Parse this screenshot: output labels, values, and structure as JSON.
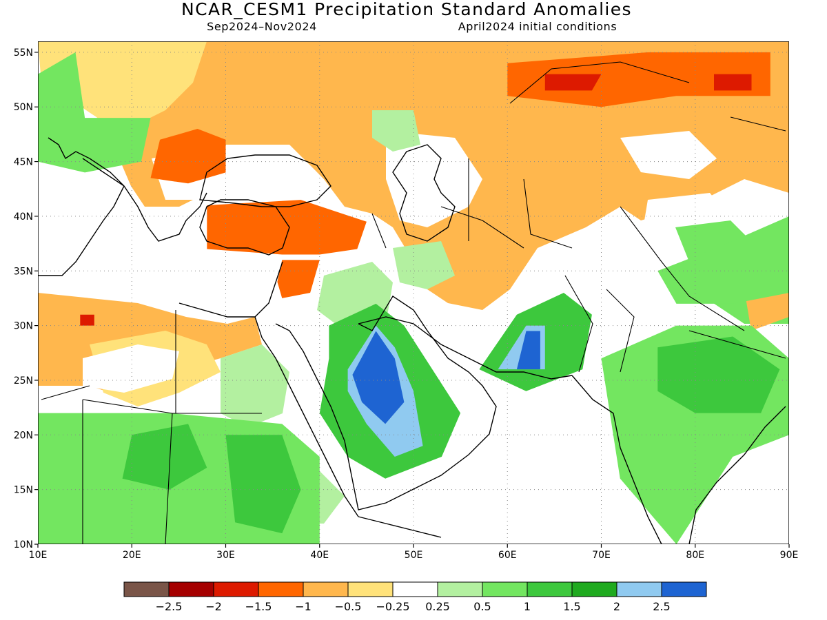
{
  "title": "NCAR_CESM1 Precipitation Standard Anomalies",
  "subtitle_period": "Sep2024–Nov2024",
  "subtitle_init": "April2024 initial conditions",
  "extent": {
    "lon": [
      10,
      90
    ],
    "lat": [
      10,
      56
    ]
  },
  "lat_ticks": [
    {
      "value": 55,
      "label": "55N"
    },
    {
      "value": 50,
      "label": "50N"
    },
    {
      "value": 45,
      "label": "45N"
    },
    {
      "value": 40,
      "label": "40N"
    },
    {
      "value": 35,
      "label": "35N"
    },
    {
      "value": 30,
      "label": "30N"
    },
    {
      "value": 25,
      "label": "25N"
    },
    {
      "value": 20,
      "label": "20N"
    },
    {
      "value": 15,
      "label": "15N"
    },
    {
      "value": 10,
      "label": "10N"
    }
  ],
  "lon_ticks": [
    {
      "value": 10,
      "label": "10E"
    },
    {
      "value": 20,
      "label": "20E"
    },
    {
      "value": 30,
      "label": "30E"
    },
    {
      "value": 40,
      "label": "40E"
    },
    {
      "value": 50,
      "label": "50E"
    },
    {
      "value": 60,
      "label": "60E"
    },
    {
      "value": 70,
      "label": "70E"
    },
    {
      "value": 80,
      "label": "80E"
    },
    {
      "value": 90,
      "label": "90E"
    }
  ],
  "colorbar": {
    "colors": [
      "#7a5548",
      "#a50000",
      "#dd1a00",
      "#ff6600",
      "#ffb74d",
      "#ffe27a",
      "#ffffff",
      "#b3f0a0",
      "#73e660",
      "#3dc83d",
      "#1faa1f",
      "#90caf0",
      "#1e64d2"
    ],
    "labels": [
      "−2.5",
      "−2",
      "−1.5",
      "−1",
      "−0.5",
      "−0.25",
      "0.25",
      "0.5",
      "1",
      "1.5",
      "2",
      "2.5"
    ]
  },
  "anomaly_regions": [
    {
      "level": "-1",
      "color": "#ff6600",
      "poly": [
        [
          28,
          41
        ],
        [
          38,
          41.5
        ],
        [
          45,
          39.5
        ],
        [
          44,
          37
        ],
        [
          40,
          36.5
        ],
        [
          36,
          36.5
        ],
        [
          28,
          37
        ]
      ]
    },
    {
      "level": "-1",
      "color": "#ff6600",
      "poly": [
        [
          36,
          36
        ],
        [
          40,
          36
        ],
        [
          39,
          33
        ],
        [
          36,
          32.5
        ],
        [
          35.5,
          34
        ]
      ]
    },
    {
      "level": "-1",
      "color": "#ff6600",
      "poly": [
        [
          23,
          47
        ],
        [
          27,
          48
        ],
        [
          30,
          47
        ],
        [
          30,
          44
        ],
        [
          26,
          43
        ],
        [
          22,
          43.5
        ]
      ]
    },
    {
      "level": "-1",
      "color": "#ff6600",
      "poly": [
        [
          60,
          54
        ],
        [
          75,
          55
        ],
        [
          88,
          55
        ],
        [
          88,
          51
        ],
        [
          78,
          51
        ],
        [
          70,
          50
        ],
        [
          60,
          51
        ]
      ]
    },
    {
      "level": "-1.5",
      "color": "#dd1a00",
      "poly": [
        [
          64,
          53
        ],
        [
          70,
          53
        ],
        [
          69,
          51.5
        ],
        [
          64,
          51.5
        ]
      ]
    },
    {
      "level": "-1.5",
      "color": "#dd1a00",
      "poly": [
        [
          82,
          53
        ],
        [
          86,
          53
        ],
        [
          86,
          51.5
        ],
        [
          82,
          51.5
        ]
      ]
    },
    {
      "level": "-1.5",
      "color": "#dd1a00",
      "poly": [
        [
          14.5,
          31
        ],
        [
          16,
          31
        ],
        [
          16,
          30
        ],
        [
          14.5,
          30
        ]
      ]
    },
    {
      "level": "1.5",
      "color": "#3dc83d",
      "poly": [
        [
          41,
          30
        ],
        [
          46,
          32
        ],
        [
          49,
          30
        ],
        [
          52,
          26
        ],
        [
          55,
          22
        ],
        [
          53,
          18
        ],
        [
          47,
          16
        ],
        [
          43,
          18
        ],
        [
          40,
          22
        ],
        [
          41,
          27
        ]
      ]
    },
    {
      "level": "2",
      "color": "#90caf0",
      "poly": [
        [
          43,
          26
        ],
        [
          46,
          30
        ],
        [
          48,
          28
        ],
        [
          50,
          24
        ],
        [
          51,
          19
        ],
        [
          48,
          18
        ],
        [
          45,
          21
        ],
        [
          43,
          24
        ]
      ]
    },
    {
      "level": "2.5",
      "color": "#1e64d2",
      "poly": [
        [
          43.5,
          25.5
        ],
        [
          46,
          29.5
        ],
        [
          48,
          27
        ],
        [
          49,
          23
        ],
        [
          47,
          21
        ],
        [
          44.5,
          23
        ]
      ]
    },
    {
      "level": "1.5",
      "color": "#3dc83d",
      "poly": [
        [
          57,
          26
        ],
        [
          61,
          31
        ],
        [
          66,
          33
        ],
        [
          69,
          31
        ],
        [
          68,
          26
        ],
        [
          62,
          24
        ]
      ]
    },
    {
      "level": "2",
      "color": "#90caf0",
      "poly": [
        [
          59,
          26
        ],
        [
          62,
          30
        ],
        [
          64,
          30
        ],
        [
          64,
          26
        ]
      ]
    },
    {
      "level": "2.5",
      "color": "#1e64d2",
      "poly": [
        [
          61,
          26
        ],
        [
          62,
          29.5
        ],
        [
          63.5,
          29.5
        ],
        [
          63.5,
          26
        ]
      ]
    },
    {
      "level": "1",
      "color": "#73e660",
      "poly": [
        [
          10,
          22
        ],
        [
          24,
          22
        ],
        [
          36,
          21
        ],
        [
          40,
          18
        ],
        [
          40,
          10
        ],
        [
          10,
          10
        ]
      ]
    },
    {
      "level": "1.5",
      "color": "#3dc83d",
      "poly": [
        [
          30,
          20
        ],
        [
          36,
          20
        ],
        [
          38,
          15
        ],
        [
          36,
          11
        ],
        [
          31,
          12
        ]
      ]
    },
    {
      "level": "1.5",
      "color": "#3dc83d",
      "poly": [
        [
          20,
          20
        ],
        [
          26,
          21
        ],
        [
          28,
          17
        ],
        [
          24,
          15
        ],
        [
          19,
          16
        ]
      ]
    },
    {
      "level": "1",
      "color": "#73e660",
      "poly": [
        [
          70,
          27
        ],
        [
          78,
          30
        ],
        [
          86,
          30
        ],
        [
          90,
          27
        ],
        [
          90,
          20
        ],
        [
          84,
          18
        ],
        [
          78,
          10
        ],
        [
          72,
          16
        ]
      ]
    },
    {
      "level": "1.5",
      "color": "#3dc83d",
      "poly": [
        [
          76,
          28
        ],
        [
          84,
          29
        ],
        [
          89,
          26
        ],
        [
          87,
          22
        ],
        [
          80,
          22
        ],
        [
          76,
          24
        ]
      ]
    },
    {
      "level": "1",
      "color": "#73e660",
      "poly": [
        [
          76,
          35
        ],
        [
          82,
          37
        ],
        [
          90,
          40
        ],
        [
          90,
          33
        ],
        [
          84,
          32
        ],
        [
          78,
          32
        ]
      ]
    },
    {
      "level": "1",
      "color": "#73e660",
      "poly": [
        [
          10,
          53
        ],
        [
          14,
          55
        ],
        [
          15,
          49
        ],
        [
          12,
          45
        ],
        [
          10,
          45
        ]
      ]
    },
    {
      "level": "1",
      "color": "#73e660",
      "poly": [
        [
          10,
          49
        ],
        [
          22,
          49
        ],
        [
          21,
          45
        ],
        [
          15,
          44
        ],
        [
          10,
          45
        ]
      ]
    }
  ]
}
